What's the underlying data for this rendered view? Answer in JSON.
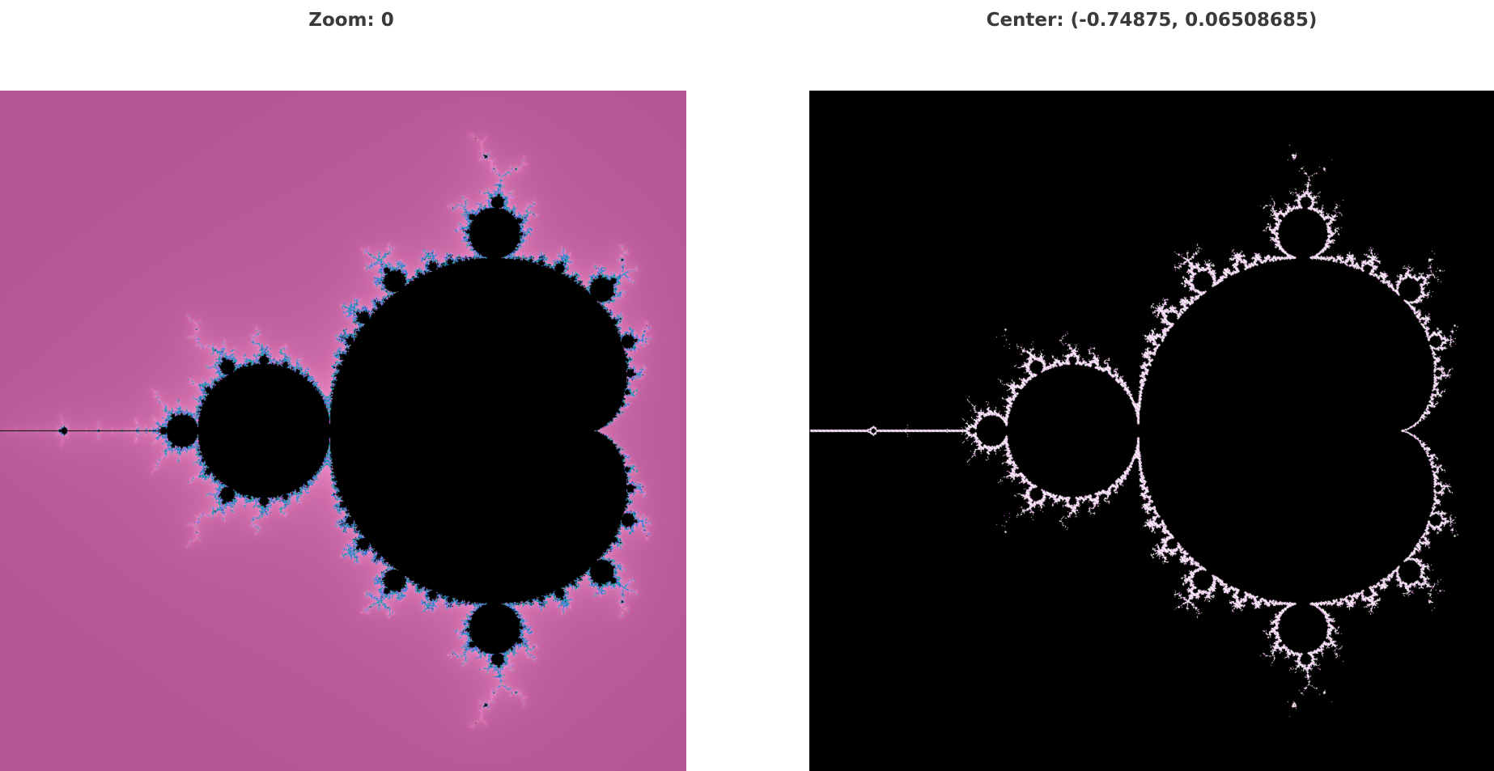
{
  "zoom": {
    "label": "Zoom: 0",
    "value": 0
  },
  "center": {
    "label": "Center: (-0.74875, 0.06508685)",
    "x": -0.74875,
    "y": 0.06508685
  },
  "views": {
    "left": {
      "name": "mandelbrot-smooth-colored",
      "background_color": "#b4508f",
      "interior_color": "#000000"
    },
    "right": {
      "name": "mandelbrot-boundary-map",
      "background_color": "#000000",
      "edge_color": "#ffffff"
    }
  }
}
